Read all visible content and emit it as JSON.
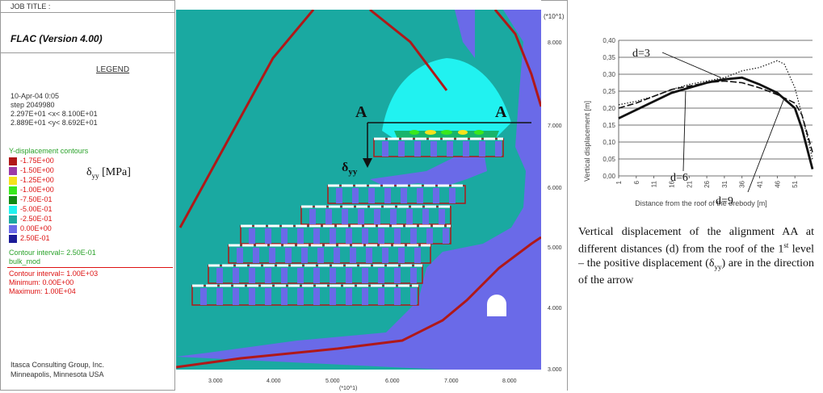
{
  "left_panel": {
    "job_title": "JOB TITLE :",
    "app_title": "FLAC (Version 4.00)",
    "legend_title": "LEGEND",
    "date": "10-Apr-04  0:05",
    "step": "step  2049980",
    "x_range": "2.297E+01 <x<  8.100E+01",
    "y_range": "2.889E+01 <y<  8.692E+01",
    "contours_title": "Y-displacement contours",
    "contour_levels": [
      {
        "label": "-1.75E+00",
        "color": "#b01818"
      },
      {
        "label": "-1.50E+00",
        "color": "#9b3aa8"
      },
      {
        "label": "-1.25E+00",
        "color": "#f5e21c"
      },
      {
        "label": "-1.00E+00",
        "color": "#39e81d"
      },
      {
        "label": "-7.50E-01",
        "color": "#128a12"
      },
      {
        "label": "-5.00E-01",
        "color": "#21f2f0"
      },
      {
        "label": "-2.50E-01",
        "color": "#1aa9a1"
      },
      {
        "label": "0.00E+00",
        "color": "#6a6ae8"
      },
      {
        "label": "2.50E-01",
        "color": "#1b1b98"
      }
    ],
    "delta_label": "δ",
    "delta_sub": "yy",
    "delta_unit": " [MPa]",
    "contour_interval": "Contour interval= 2.50E-01",
    "bulk_mod": "bulk_mod",
    "contour_interval2": "Contour interval= 1.00E+03",
    "minimum": "Minimum:  0.00E+00",
    "maximum": "Maximum:   1.00E+04",
    "company": "Itasca Consulting Group, Inc.",
    "location": "Minneapolis, Minnesota  USA"
  },
  "plot": {
    "y_unit": "(*10^1)",
    "x_unit": "(*10^1)",
    "y_ticks": [
      "8.000",
      "7.000",
      "6.000",
      "5.000",
      "4.000",
      "3.000"
    ],
    "x_ticks": [
      "3.000",
      "4.000",
      "5.000",
      "6.000",
      "7.000",
      "8.000"
    ],
    "label_A_left": "A",
    "label_A_right": "A",
    "delta_label": "δ",
    "delta_sub": "yy"
  },
  "chart_data": {
    "type": "line",
    "title": "",
    "xlabel": "Distance from the roof  of the orebody [m]",
    "ylabel": "Vertical displacement [m]",
    "ylim": [
      0,
      0.4
    ],
    "yticks": [
      "0,00",
      "0,05",
      "0,10",
      "0,15",
      "0,20",
      "0,25",
      "0,30",
      "0,35",
      "0,40"
    ],
    "xticks": [
      "1",
      "6",
      "11",
      "16",
      "21",
      "26",
      "31",
      "36",
      "41",
      "46",
      "51"
    ],
    "xlim": [
      1,
      56
    ],
    "grid": "horizontal",
    "series": [
      {
        "name": "d=3",
        "style": "dotted",
        "x": [
          1,
          6,
          11,
          16,
          21,
          26,
          31,
          36,
          41,
          46,
          48,
          51,
          53,
          56
        ],
        "y": [
          0.21,
          0.22,
          0.235,
          0.255,
          0.27,
          0.28,
          0.29,
          0.31,
          0.32,
          0.34,
          0.33,
          0.26,
          0.18,
          0.05
        ]
      },
      {
        "name": "d=6",
        "style": "dashed",
        "x": [
          1,
          6,
          11,
          16,
          21,
          26,
          31,
          36,
          41,
          46,
          51,
          53,
          56
        ],
        "y": [
          0.2,
          0.215,
          0.235,
          0.255,
          0.265,
          0.275,
          0.28,
          0.275,
          0.26,
          0.24,
          0.215,
          0.18,
          0.07
        ]
      },
      {
        "name": "d=9",
        "style": "solid-thick",
        "x": [
          1,
          6,
          11,
          16,
          21,
          26,
          31,
          36,
          41,
          46,
          51,
          53,
          56
        ],
        "y": [
          0.17,
          0.195,
          0.22,
          0.245,
          0.26,
          0.275,
          0.285,
          0.29,
          0.27,
          0.245,
          0.2,
          0.14,
          0.02
        ]
      }
    ],
    "annotations": [
      "d=3",
      "d=6",
      "d=9"
    ]
  },
  "caption": {
    "part1": "Vertical displacement of the alignment AA at different distances (d) from the roof of the 1",
    "sup": "st",
    "part2": " level – the positive displacement (δ",
    "sub": "yy",
    "part3": ") are in the direction of the arrow"
  }
}
